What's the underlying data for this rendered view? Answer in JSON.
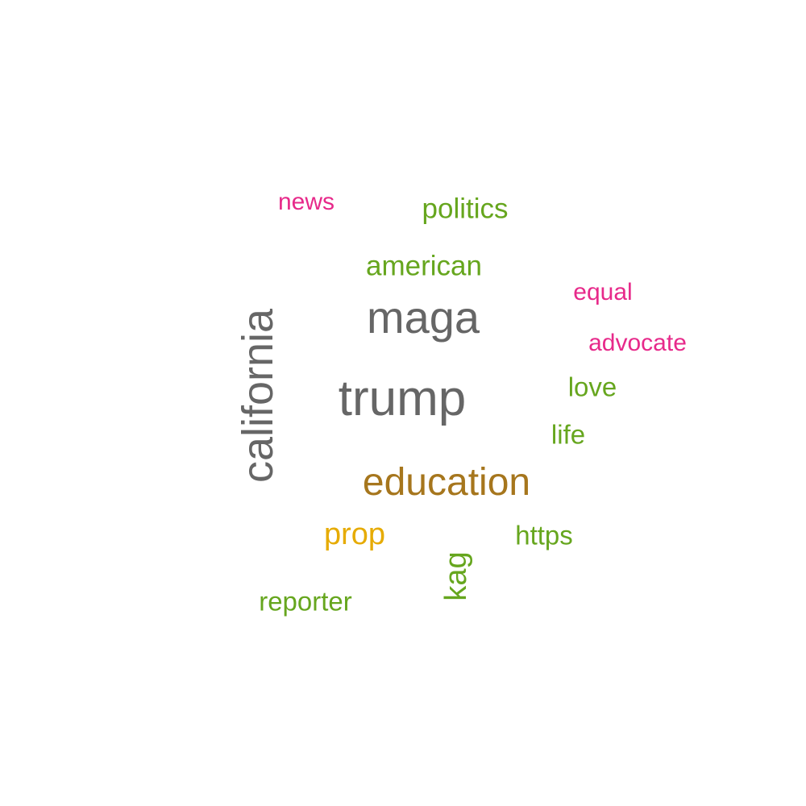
{
  "word_cloud": {
    "colors": {
      "gray": "#666666",
      "green": "#66a61e",
      "magenta": "#e7298a",
      "brown": "#a6761d",
      "gold": "#e6ab02"
    },
    "words": [
      {
        "text": "trump",
        "color": "#666666",
        "orientation": "horizontal"
      },
      {
        "text": "maga",
        "color": "#666666",
        "orientation": "horizontal"
      },
      {
        "text": "california",
        "color": "#666666",
        "orientation": "vertical"
      },
      {
        "text": "education",
        "color": "#a6761d",
        "orientation": "horizontal"
      },
      {
        "text": "american",
        "color": "#66a61e",
        "orientation": "horizontal"
      },
      {
        "text": "politics",
        "color": "#66a61e",
        "orientation": "horizontal"
      },
      {
        "text": "news",
        "color": "#e7298a",
        "orientation": "horizontal"
      },
      {
        "text": "equal",
        "color": "#e7298a",
        "orientation": "horizontal"
      },
      {
        "text": "advocate",
        "color": "#e7298a",
        "orientation": "horizontal"
      },
      {
        "text": "love",
        "color": "#66a61e",
        "orientation": "horizontal"
      },
      {
        "text": "life",
        "color": "#66a61e",
        "orientation": "horizontal"
      },
      {
        "text": "prop",
        "color": "#e6ab02",
        "orientation": "horizontal"
      },
      {
        "text": "https",
        "color": "#66a61e",
        "orientation": "horizontal"
      },
      {
        "text": "kag",
        "color": "#66a61e",
        "orientation": "vertical"
      },
      {
        "text": "reporter",
        "color": "#66a61e",
        "orientation": "horizontal"
      }
    ]
  }
}
